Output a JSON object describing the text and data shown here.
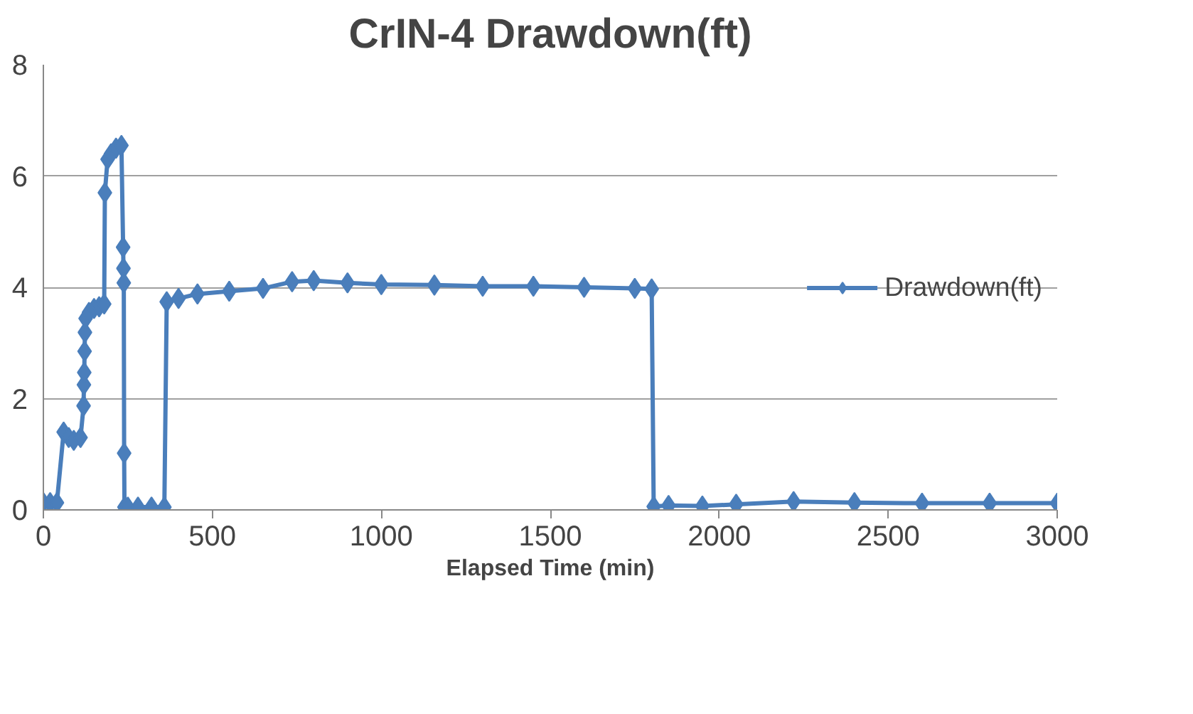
{
  "chart_data": {
    "type": "line",
    "title": "CrIN-4 Drawdown(ft)",
    "xlabel": "Elapsed Time (min)",
    "x": [
      0,
      20,
      40,
      60,
      75,
      90,
      110,
      119,
      120,
      121,
      122,
      123,
      125,
      135,
      150,
      165,
      180,
      182,
      190,
      200,
      215,
      231,
      236,
      237,
      238,
      239,
      240,
      250,
      280,
      320,
      358,
      365,
      400,
      456,
      550,
      650,
      736,
      800,
      900,
      1000,
      1157,
      1300,
      1450,
      1600,
      1750,
      1800,
      1806,
      1850,
      1950,
      2050,
      2220,
      2400,
      2600,
      2800,
      3000
    ],
    "series": [
      {
        "name": "Drawdown(ft)",
        "color": "#4a7ebb",
        "values": [
          0.13,
          0.13,
          0.13,
          1.4,
          1.3,
          1.25,
          1.3,
          1.87,
          2.25,
          2.47,
          2.85,
          3.19,
          3.44,
          3.55,
          3.62,
          3.65,
          3.7,
          5.7,
          6.3,
          6.4,
          6.5,
          6.55,
          4.72,
          4.34,
          4.08,
          1.02,
          0.05,
          0.05,
          0.05,
          0.05,
          0.05,
          3.74,
          3.8,
          3.88,
          3.93,
          3.98,
          4.1,
          4.12,
          4.08,
          4.05,
          4.04,
          4.02,
          4.02,
          4.0,
          3.98,
          3.97,
          0.06,
          0.08,
          0.07,
          0.1,
          0.15,
          0.13,
          0.12,
          0.12,
          0.12
        ]
      }
    ],
    "xlim": [
      0,
      3000
    ],
    "ylim": [
      0,
      8
    ],
    "xticks": [
      0,
      500,
      1000,
      1500,
      2000,
      2500,
      3000
    ],
    "yticks": [
      0,
      2,
      4,
      6,
      8
    ],
    "grid": "y",
    "legend": "right",
    "marker": "diamond",
    "line_style": "solid"
  }
}
